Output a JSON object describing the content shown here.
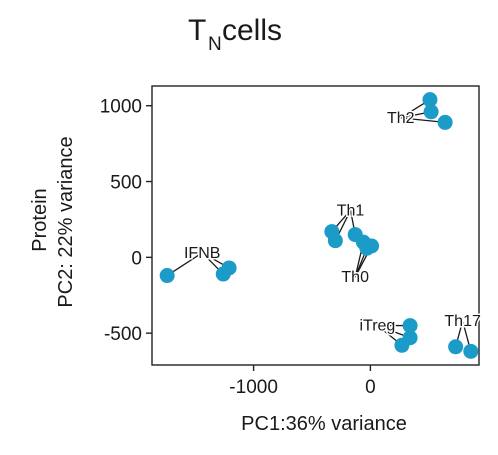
{
  "chart_data": {
    "type": "scatter",
    "title": "T",
    "title_subscript": "N",
    "title_suffix": " cells",
    "xlabel": "PC1:36% variance",
    "ylabel_line1": "Protein",
    "ylabel_line2": "PC2: 22% variance",
    "xlim": [
      -1870,
      930
    ],
    "ylim": [
      -710,
      1130
    ],
    "x_ticks": [
      -1000,
      0
    ],
    "x_tick_labels": [
      "-1000",
      "0"
    ],
    "y_ticks": [
      -500,
      0,
      500,
      1000
    ],
    "y_tick_labels": [
      "-500",
      "0",
      "500",
      "1000"
    ],
    "grid": false,
    "point_color": "#1a9bc8",
    "points": [
      {
        "x": 510,
        "y": 1040
      },
      {
        "x": 520,
        "y": 960
      },
      {
        "x": 640,
        "y": 890
      },
      {
        "x": -330,
        "y": 170
      },
      {
        "x": -300,
        "y": 110
      },
      {
        "x": -130,
        "y": 150
      },
      {
        "x": -60,
        "y": 100
      },
      {
        "x": -30,
        "y": 60
      },
      {
        "x": 10,
        "y": 75
      },
      {
        "x": -1740,
        "y": -120
      },
      {
        "x": -1260,
        "y": -110
      },
      {
        "x": -1210,
        "y": -70
      },
      {
        "x": 340,
        "y": -450
      },
      {
        "x": 340,
        "y": -530
      },
      {
        "x": 270,
        "y": -580
      },
      {
        "x": 730,
        "y": -590
      },
      {
        "x": 860,
        "y": -620
      }
    ],
    "annotations": [
      {
        "text": "Th2",
        "x": 260,
        "y": 920,
        "targets": [
          0,
          1,
          2
        ],
        "anchor": "middle"
      },
      {
        "text": "Th1",
        "x": -170,
        "y": 310,
        "targets": [
          3,
          4,
          5
        ],
        "anchor": "middle"
      },
      {
        "text": "Th0",
        "x": -130,
        "y": -130,
        "targets": [
          6,
          7,
          8
        ],
        "anchor": "middle"
      },
      {
        "text": "IFNB",
        "x": -1440,
        "y": 30,
        "targets": [
          9,
          10,
          11
        ],
        "anchor": "middle"
      },
      {
        "text": "iTreg",
        "x": 60,
        "y": -450,
        "targets": [
          12,
          13,
          14
        ],
        "anchor": "middle"
      },
      {
        "text": "Th17",
        "x": 790,
        "y": -420,
        "targets": [
          15,
          16
        ],
        "anchor": "middle"
      }
    ]
  }
}
